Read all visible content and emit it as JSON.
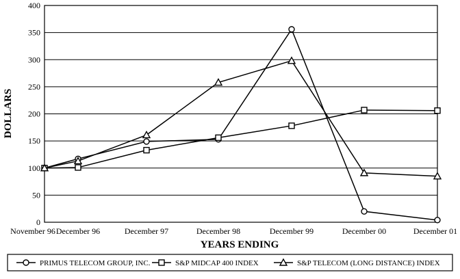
{
  "chart_data": {
    "type": "line",
    "title": "",
    "xlabel": "YEARS ENDING",
    "ylabel": "DOLLARS",
    "categories": [
      "November 96",
      "December 96",
      "December 97",
      "December 98",
      "December 99",
      "December 00",
      "December 01"
    ],
    "ylim": [
      0,
      400
    ],
    "yticks": [
      0,
      50,
      100,
      150,
      200,
      250,
      300,
      350,
      400
    ],
    "grid": true,
    "legend_position": "bottom",
    "series": [
      {
        "name": "PRIMUS TELECOM GROUP, INC.",
        "marker": "circle",
        "values": [
          100,
          117,
          149,
          153,
          356,
          20,
          4
        ]
      },
      {
        "name": "S&P MIDCAP 400 INDEX",
        "marker": "square",
        "values": [
          100,
          101,
          133,
          156,
          178,
          207,
          206
        ]
      },
      {
        "name": "S&P TELECOM (LONG DISTANCE) INDEX",
        "marker": "triangle",
        "values": [
          100,
          113,
          161,
          258,
          298,
          91,
          85
        ]
      }
    ]
  }
}
